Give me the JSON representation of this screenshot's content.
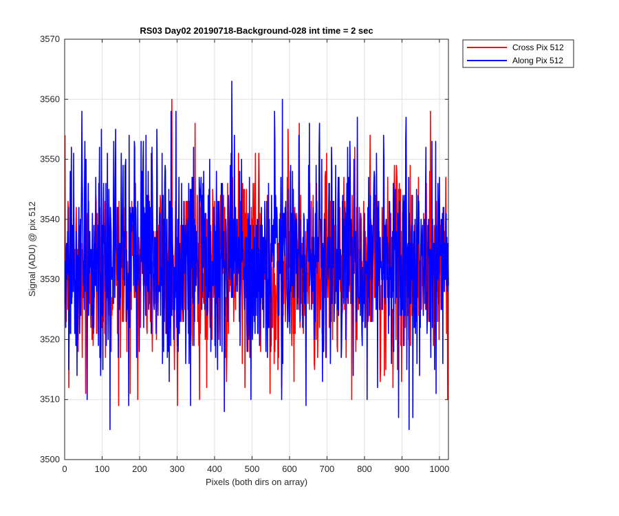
{
  "chart_data": {
    "type": "line",
    "title": "RS03 Day02 20190718-Background-028 int time = 2 sec",
    "xlabel": "Pixels (both dirs on array)",
    "ylabel": "Signal (ADU) @ pix 512",
    "xlim": [
      0,
      1024
    ],
    "ylim": [
      3500,
      3570
    ],
    "xticks": [
      0,
      100,
      200,
      300,
      400,
      500,
      600,
      700,
      800,
      900,
      1000
    ],
    "yticks": [
      3500,
      3510,
      3520,
      3530,
      3540,
      3550,
      3560,
      3570
    ],
    "grid": true,
    "legend_position": "outside top-right",
    "n_points": 1024,
    "series": [
      {
        "name": "Cross Pix 512",
        "color": "#ff0000",
        "mean": 3532,
        "std": 8,
        "min": 3509,
        "max": 3560,
        "peaks": [
          {
            "x": 285,
            "y": 3560
          },
          {
            "x": 347,
            "y": 3556
          },
          {
            "x": 595,
            "y": 3555
          },
          {
            "x": 625,
            "y": 3556
          },
          {
            "x": 975,
            "y": 3558
          }
        ],
        "troughs": [
          {
            "x": 10,
            "y": 3512
          },
          {
            "x": 55,
            "y": 3511
          },
          {
            "x": 143,
            "y": 3509
          },
          {
            "x": 300,
            "y": 3509
          },
          {
            "x": 547,
            "y": 3511
          }
        ]
      },
      {
        "name": "Along Pix 512",
        "color": "#0000ff",
        "mean": 3533,
        "std": 9,
        "min": 3505,
        "max": 3563,
        "peaks": [
          {
            "x": 45,
            "y": 3558
          },
          {
            "x": 283,
            "y": 3558
          },
          {
            "x": 445,
            "y": 3563
          },
          {
            "x": 580,
            "y": 3560
          },
          {
            "x": 910,
            "y": 3557
          }
        ],
        "troughs": [
          {
            "x": 120,
            "y": 3505
          },
          {
            "x": 335,
            "y": 3509
          },
          {
            "x": 890,
            "y": 3507
          },
          {
            "x": 918,
            "y": 3505
          },
          {
            "x": 928,
            "y": 3507
          }
        ]
      }
    ]
  }
}
